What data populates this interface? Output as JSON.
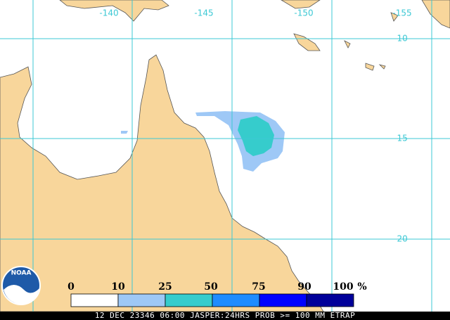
{
  "map": {
    "lon_labels": [
      "-140",
      "-145",
      "-150",
      "-155"
    ],
    "lat_labels": [
      "-10",
      "-15",
      "-20"
    ],
    "legend": {
      "labels": [
        "0",
        "10",
        "25",
        "50",
        "75",
        "90",
        "100"
      ],
      "unit": "%",
      "colors": [
        "#ffffff",
        "#9ec8f6",
        "#36cccc",
        "#1e8cff",
        "#0000ff",
        "#00009a"
      ]
    },
    "logo": "NOAA",
    "footer": "12 DEC 23346 06:00 JASPER:24HRS PROB >= 100 MM ETRAP"
  }
}
